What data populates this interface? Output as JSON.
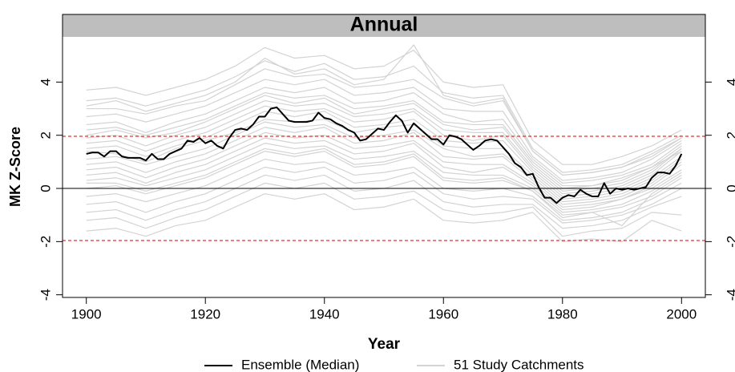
{
  "chart_data": {
    "type": "line",
    "title": "Annual",
    "xlabel": "Year",
    "ylabel": "MK Z-Score",
    "xlim": [
      1896,
      2004
    ],
    "ylim": [
      -4.1,
      5.7
    ],
    "xticks": [
      1900,
      1920,
      1940,
      1960,
      1980,
      2000
    ],
    "yticks": [
      -4,
      -2,
      0,
      2,
      4
    ],
    "hlines": [
      {
        "value": 1.96,
        "color": "#e00000",
        "dashed": true
      },
      {
        "value": -1.96,
        "color": "#e00000",
        "dashed": true
      },
      {
        "value": 0,
        "color": "#000000",
        "dashed": false
      }
    ],
    "x": [
      1900,
      1901,
      1902,
      1903,
      1904,
      1905,
      1906,
      1907,
      1908,
      1909,
      1910,
      1911,
      1912,
      1913,
      1914,
      1915,
      1916,
      1917,
      1918,
      1919,
      1920,
      1921,
      1922,
      1923,
      1924,
      1925,
      1926,
      1927,
      1928,
      1929,
      1930,
      1931,
      1932,
      1933,
      1934,
      1935,
      1936,
      1937,
      1938,
      1939,
      1940,
      1941,
      1942,
      1943,
      1944,
      1945,
      1946,
      1947,
      1948,
      1949,
      1950,
      1951,
      1952,
      1953,
      1954,
      1955,
      1956,
      1957,
      1958,
      1959,
      1960,
      1961,
      1962,
      1963,
      1964,
      1965,
      1966,
      1967,
      1968,
      1969,
      1970,
      1971,
      1972,
      1973,
      1974,
      1975,
      1976,
      1977,
      1978,
      1979,
      1980,
      1981,
      1982,
      1983,
      1984,
      1985,
      1986,
      1987,
      1988,
      1989,
      1990,
      1991,
      1992,
      1993,
      1994,
      1995,
      1996,
      1997,
      1998,
      1999,
      2000
    ],
    "series": [
      {
        "name": "Ensemble (Median)",
        "color": "#000000",
        "values": [
          1.3,
          1.35,
          1.35,
          1.2,
          1.4,
          1.4,
          1.2,
          1.15,
          1.15,
          1.15,
          1.05,
          1.3,
          1.1,
          1.1,
          1.3,
          1.4,
          1.5,
          1.8,
          1.75,
          1.9,
          1.7,
          1.8,
          1.6,
          1.5,
          1.9,
          2.2,
          2.25,
          2.2,
          2.4,
          2.7,
          2.7,
          3.0,
          3.05,
          2.8,
          2.55,
          2.5,
          2.5,
          2.5,
          2.55,
          2.85,
          2.65,
          2.6,
          2.45,
          2.35,
          2.2,
          2.1,
          1.8,
          1.85,
          2.05,
          2.25,
          2.2,
          2.5,
          2.75,
          2.55,
          2.1,
          2.45,
          2.25,
          2.05,
          1.85,
          1.85,
          1.65,
          2.0,
          1.95,
          1.85,
          1.65,
          1.45,
          1.6,
          1.8,
          1.85,
          1.8,
          1.55,
          1.3,
          0.95,
          0.8,
          0.5,
          0.55,
          0.05,
          -0.35,
          -0.35,
          -0.55,
          -0.35,
          -0.25,
          -0.3,
          -0.05,
          -0.2,
          -0.3,
          -0.3,
          0.2,
          -0.2,
          0.0,
          -0.05,
          0.0,
          -0.05,
          0.0,
          0.05,
          0.4,
          0.6,
          0.6,
          0.55,
          0.85,
          1.3
        ]
      }
    ],
    "catchments": {
      "name": "51 Study Catchments",
      "color": "#d3d3d3",
      "x": [
        1900,
        1905,
        1910,
        1915,
        1920,
        1925,
        1930,
        1935,
        1940,
        1945,
        1950,
        1955,
        1960,
        1965,
        1970,
        1975,
        1980,
        1985,
        1990,
        1995,
        2000
      ],
      "series": [
        [
          3.7,
          3.8,
          3.5,
          3.8,
          4.1,
          4.6,
          5.3,
          4.9,
          5.0,
          4.5,
          4.6,
          5.2,
          4.0,
          3.8,
          3.9,
          1.8,
          0.9,
          0.9,
          1.2,
          1.6,
          2.2
        ],
        [
          3.3,
          3.4,
          3.1,
          3.4,
          3.7,
          4.2,
          4.8,
          4.4,
          4.7,
          4.1,
          4.2,
          4.6,
          3.6,
          3.4,
          3.5,
          1.5,
          0.6,
          0.7,
          0.9,
          1.4,
          2.0
        ],
        [
          3.0,
          3.0,
          2.8,
          3.1,
          3.3,
          3.9,
          4.5,
          4.2,
          4.3,
          3.8,
          3.9,
          4.1,
          3.4,
          3.1,
          3.3,
          1.4,
          0.5,
          0.6,
          0.8,
          1.2,
          1.9
        ],
        [
          2.7,
          2.8,
          2.5,
          2.8,
          3.1,
          3.6,
          4.1,
          3.9,
          4.1,
          3.5,
          3.6,
          3.8,
          3.0,
          2.9,
          2.9,
          1.2,
          0.3,
          0.4,
          0.6,
          1.1,
          1.8
        ],
        [
          2.4,
          2.5,
          2.1,
          2.5,
          2.8,
          3.3,
          3.8,
          3.6,
          3.8,
          3.2,
          3.3,
          3.6,
          2.8,
          2.5,
          2.6,
          1.1,
          0.2,
          0.3,
          0.5,
          0.9,
          1.7
        ],
        [
          2.2,
          2.3,
          2.0,
          2.3,
          2.6,
          3.1,
          3.6,
          3.4,
          3.5,
          3.0,
          3.1,
          3.3,
          2.5,
          2.4,
          2.4,
          1.0,
          0.1,
          0.1,
          0.4,
          0.8,
          1.6
        ],
        [
          1.9,
          2.0,
          1.6,
          2.0,
          2.3,
          2.8,
          3.3,
          3.1,
          3.2,
          2.7,
          2.8,
          3.0,
          2.2,
          2.1,
          2.1,
          0.8,
          -0.1,
          0.0,
          0.2,
          0.7,
          1.5
        ],
        [
          1.7,
          1.8,
          1.4,
          1.8,
          2.1,
          2.6,
          3.1,
          2.9,
          3.0,
          2.5,
          2.6,
          2.9,
          2.0,
          1.8,
          2.0,
          0.7,
          -0.2,
          -0.1,
          0.1,
          0.6,
          1.5
        ],
        [
          1.5,
          1.6,
          1.2,
          1.6,
          1.9,
          2.4,
          2.9,
          2.7,
          2.9,
          2.3,
          2.4,
          2.6,
          1.8,
          1.7,
          1.8,
          0.6,
          -0.3,
          -0.2,
          0.0,
          0.5,
          1.4
        ],
        [
          1.1,
          1.2,
          0.9,
          1.2,
          1.5,
          2.0,
          2.5,
          2.3,
          2.4,
          1.9,
          2.0,
          2.2,
          1.5,
          1.2,
          1.3,
          0.4,
          -0.5,
          -0.4,
          -0.2,
          0.3,
          1.1
        ],
        [
          0.9,
          1.0,
          0.6,
          1.0,
          1.3,
          1.8,
          2.3,
          2.1,
          2.3,
          1.7,
          1.8,
          2.1,
          1.2,
          1.1,
          1.2,
          0.3,
          -0.6,
          -0.5,
          -0.3,
          0.2,
          1.0
        ],
        [
          0.7,
          0.8,
          0.4,
          0.8,
          1.1,
          1.6,
          2.1,
          1.9,
          2.0,
          1.5,
          1.6,
          1.8,
          1.0,
          0.9,
          0.9,
          0.2,
          -0.7,
          -0.6,
          -0.4,
          0.1,
          0.9
        ],
        [
          0.5,
          0.6,
          0.2,
          0.6,
          0.9,
          1.4,
          1.9,
          1.7,
          1.8,
          1.3,
          1.4,
          1.7,
          0.8,
          0.6,
          0.8,
          0.1,
          -0.8,
          -0.7,
          -0.4,
          0.0,
          0.7
        ],
        [
          0.3,
          0.4,
          0.1,
          0.4,
          0.7,
          1.2,
          1.7,
          1.5,
          1.6,
          1.1,
          1.2,
          1.4,
          0.6,
          0.5,
          0.5,
          0.0,
          -0.9,
          -0.8,
          -0.6,
          -0.1,
          0.6
        ],
        [
          0.0,
          0.1,
          -0.2,
          0.1,
          0.4,
          0.9,
          1.4,
          1.2,
          1.4,
          0.8,
          0.9,
          1.2,
          0.3,
          0.2,
          0.3,
          -0.1,
          -1.0,
          -0.9,
          -0.7,
          -0.3,
          0.4
        ],
        [
          -0.3,
          -0.2,
          -0.5,
          -0.2,
          0.1,
          0.6,
          1.1,
          0.9,
          1.0,
          0.5,
          0.6,
          0.8,
          0.0,
          -0.1,
          0.0,
          -0.3,
          -1.2,
          -1.1,
          -0.9,
          -0.4,
          0.2
        ],
        [
          -0.6,
          -0.5,
          -0.9,
          -0.5,
          -0.2,
          0.3,
          0.8,
          0.6,
          0.8,
          0.2,
          0.3,
          0.6,
          -0.2,
          -0.4,
          -0.3,
          -0.4,
          -1.3,
          -1.2,
          -1.0,
          -0.6,
          0.0
        ],
        [
          -0.9,
          -0.8,
          -1.2,
          -0.8,
          -0.5,
          0.0,
          0.5,
          0.3,
          0.5,
          -0.1,
          0.0,
          0.3,
          -0.5,
          -0.7,
          -0.6,
          -0.6,
          -1.5,
          -1.4,
          -1.2,
          -0.7,
          -0.3
        ],
        [
          -1.2,
          -1.1,
          -1.5,
          -1.1,
          -0.8,
          -0.3,
          0.2,
          0.0,
          0.2,
          -0.4,
          -0.3,
          -0.1,
          -0.8,
          -1.0,
          -0.9,
          -0.7,
          -1.8,
          -1.6,
          -1.5,
          -0.9,
          -1.0
        ],
        [
          -1.6,
          -1.5,
          -1.8,
          -1.4,
          -1.2,
          -0.7,
          -0.2,
          -0.4,
          -0.2,
          -0.8,
          -0.7,
          -0.4,
          -1.2,
          -1.3,
          -1.2,
          -0.9,
          -2.0,
          -1.9,
          -2.0,
          -1.2,
          -1.6
        ],
        [
          3.1,
          3.3,
          2.9,
          3.2,
          3.5,
          4.0,
          4.9,
          4.3,
          4.5,
          3.9,
          4.1,
          5.4,
          3.5,
          3.2,
          3.4,
          1.4,
          0.5,
          0.6,
          0.8,
          1.3,
          1.9
        ],
        [
          2.0,
          2.2,
          1.9,
          2.1,
          2.5,
          3.0,
          3.5,
          3.2,
          3.4,
          2.8,
          3.0,
          3.2,
          2.4,
          2.2,
          2.3,
          0.9,
          0.0,
          0.1,
          0.3,
          0.8,
          1.4
        ],
        [
          1.4,
          1.3,
          1.0,
          1.5,
          1.8,
          2.1,
          2.6,
          2.5,
          2.6,
          2.1,
          2.3,
          2.4,
          1.6,
          1.5,
          1.5,
          0.5,
          -0.4,
          -0.3,
          -0.1,
          0.4,
          1.2
        ],
        [
          0.2,
          0.2,
          -0.1,
          0.2,
          0.5,
          1.0,
          1.5,
          1.3,
          1.5,
          0.9,
          1.0,
          1.3,
          0.4,
          0.3,
          0.4,
          -0.1,
          -1.1,
          -0.9,
          -1.4,
          -0.2,
          0.5
        ]
      ]
    }
  }
}
